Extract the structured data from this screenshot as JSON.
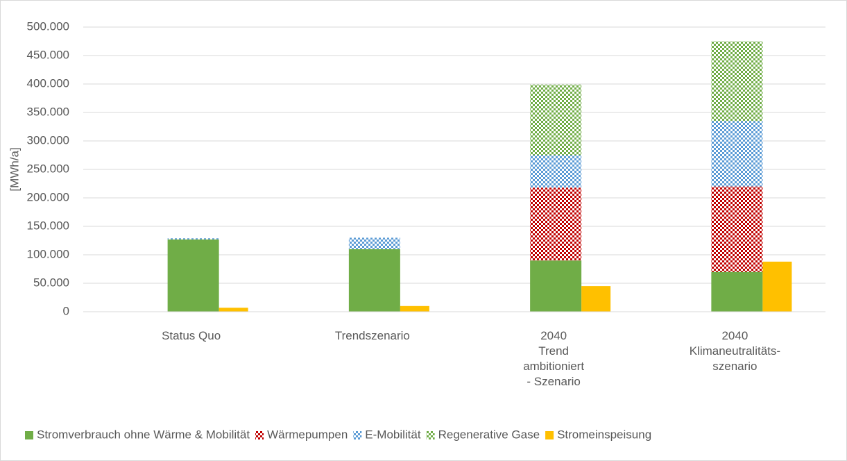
{
  "chart_data": {
    "type": "bar",
    "stacked": true,
    "y_label": "[MWh/a]",
    "categories": [
      "Status Quo",
      "Trendszenario",
      "2040\nTrend\nambitioniert\n- Szenario",
      "2040\nKlimaneutralitäts-\nszenario"
    ],
    "series": [
      {
        "name": "Stromverbrauch ohne Wärme & Mobilität",
        "color": "#70ad47",
        "pattern": "solid",
        "stack": "verbrauch",
        "values": [
          127000,
          110000,
          90000,
          70000
        ]
      },
      {
        "name": "Wärmepumpen",
        "color": "#c00000",
        "pattern": "checker",
        "stack": "verbrauch",
        "values": [
          0,
          0,
          128000,
          150000
        ]
      },
      {
        "name": "E-Mobilität",
        "color": "#5b9bd5",
        "pattern": "checker",
        "stack": "verbrauch",
        "values": [
          2000,
          20000,
          57000,
          115000
        ]
      },
      {
        "name": "Regenerative Gase",
        "color": "#70ad47",
        "pattern": "checker",
        "stack": "verbrauch",
        "values": [
          0,
          0,
          124000,
          140000
        ]
      },
      {
        "name": "Stromeinspeisung",
        "color": "#ffc000",
        "pattern": "solid",
        "stack": "einspeisung",
        "values": [
          7000,
          10000,
          45000,
          88000
        ]
      }
    ],
    "ylim": [
      0,
      500000
    ],
    "yticks": [
      0,
      {
        "value": 50000,
        "label": "50.000"
      },
      {
        "value": 100000,
        "label": "100.000"
      },
      {
        "value": 150000,
        "label": "150.000"
      },
      {
        "value": 200000,
        "label": "200.000"
      },
      {
        "value": 250000,
        "label": "250.000"
      },
      {
        "value": 300000,
        "label": "300.000"
      },
      {
        "value": 350000,
        "label": "350.000"
      },
      {
        "value": 400000,
        "label": "400.000"
      },
      {
        "value": 450000,
        "label": "450.000"
      },
      {
        "value": 500000,
        "label": "500.000"
      }
    ],
    "grid": true,
    "legend": "bottom"
  }
}
